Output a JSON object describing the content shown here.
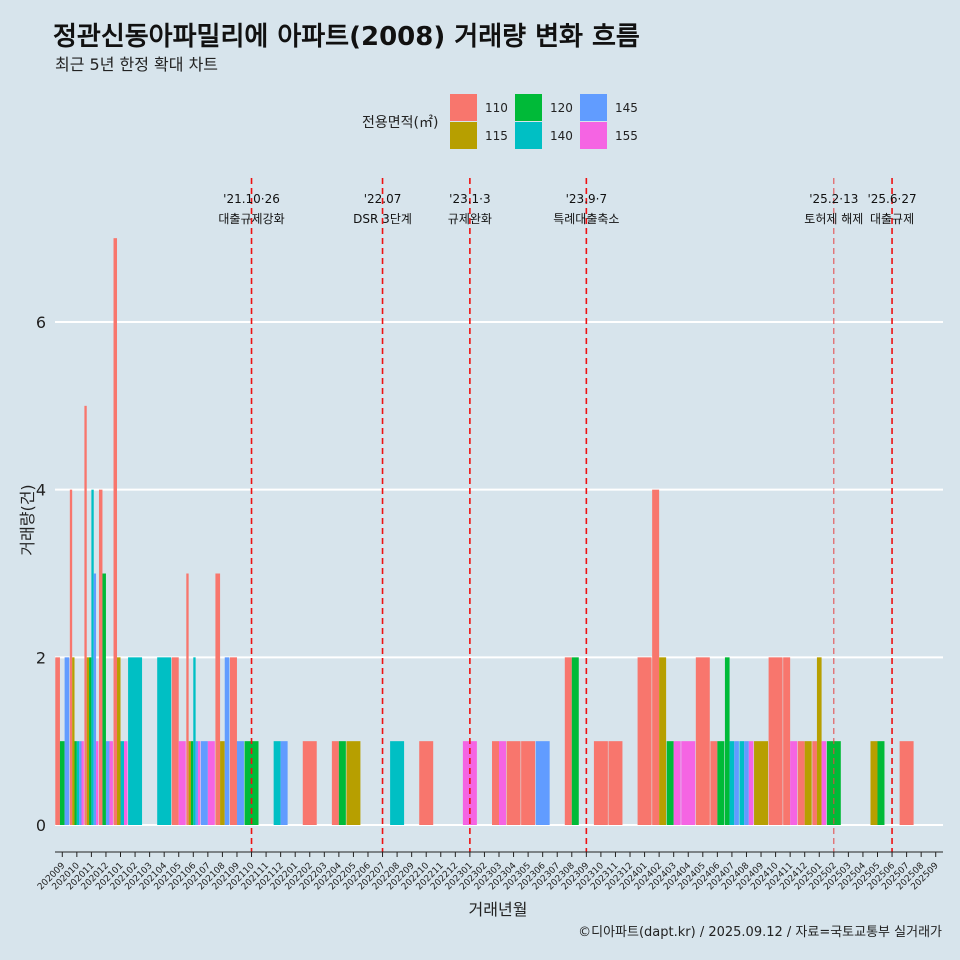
{
  "chart_data": {
    "type": "bar",
    "title": "정관신동아파밀리에 아파트(2008) 거래량 변화 흐름",
    "subtitle": "최근 5년 한정 확대 차트",
    "xlabel": "거래년월",
    "ylabel": "거래량(건)",
    "ylim": [
      -0.3,
      7.5
    ],
    "yticks": [
      0,
      2,
      4,
      6
    ],
    "legend_title": "전용면적(㎡)",
    "legend_position": "top",
    "grid": true,
    "caption": "©디아파트(dapt.kr) / 2025.09.12 / 자료=국토교통부 실거래가",
    "categories": [
      "202009",
      "202010",
      "202011",
      "202012",
      "202101",
      "202102",
      "202103",
      "202104",
      "202105",
      "202106",
      "202107",
      "202108",
      "202109",
      "202110",
      "202111",
      "202112",
      "202201",
      "202202",
      "202203",
      "202204",
      "202205",
      "202206",
      "202207",
      "202208",
      "202209",
      "202210",
      "202211",
      "202212",
      "202301",
      "202302",
      "202303",
      "202304",
      "202305",
      "202306",
      "202307",
      "202308",
      "202309",
      "202310",
      "202311",
      "202312",
      "202401",
      "202402",
      "202403",
      "202404",
      "202405",
      "202406",
      "202407",
      "202408",
      "202409",
      "202410",
      "202411",
      "202412",
      "202501",
      "202502",
      "202503",
      "202504",
      "202505",
      "202506",
      "202507",
      "202508",
      "202509"
    ],
    "series": [
      {
        "name": "110",
        "color": "#f8766d",
        "values": [
          2,
          4,
          5,
          4,
          7,
          0,
          0,
          0,
          2,
          3,
          0,
          3,
          2,
          0,
          0,
          0,
          0,
          1,
          0,
          1,
          0,
          0,
          0,
          0,
          0,
          1,
          0,
          0,
          0,
          0,
          1,
          1,
          1,
          0,
          0,
          2,
          0,
          1,
          1,
          0,
          2,
          4,
          0,
          0,
          2,
          1,
          0,
          0,
          0,
          2,
          2,
          1,
          1,
          0,
          0,
          0,
          0,
          0,
          1,
          0,
          0
        ]
      },
      {
        "name": "115",
        "color": "#b79f00",
        "values": [
          0,
          2,
          2,
          0,
          2,
          0,
          0,
          0,
          0,
          1,
          0,
          1,
          0,
          0,
          0,
          0,
          0,
          0,
          0,
          0,
          1,
          0,
          0,
          0,
          0,
          0,
          0,
          0,
          0,
          0,
          0,
          0,
          0,
          0,
          0,
          0,
          0,
          0,
          0,
          0,
          0,
          2,
          0,
          0,
          0,
          0,
          0,
          0,
          1,
          0,
          0,
          1,
          2,
          0,
          0,
          0,
          1,
          0,
          0,
          0,
          0
        ]
      },
      {
        "name": "120",
        "color": "#00ba38",
        "values": [
          1,
          1,
          2,
          3,
          0,
          0,
          0,
          0,
          0,
          1,
          0,
          0,
          0,
          1,
          0,
          0,
          0,
          0,
          0,
          1,
          0,
          0,
          0,
          0,
          0,
          0,
          0,
          0,
          0,
          0,
          0,
          0,
          0,
          0,
          0,
          2,
          0,
          0,
          0,
          0,
          0,
          0,
          1,
          0,
          0,
          1,
          2,
          0,
          0,
          0,
          0,
          0,
          0,
          1,
          0,
          0,
          1,
          0,
          0,
          0,
          0
        ]
      },
      {
        "name": "140",
        "color": "#00bfc4",
        "values": [
          0,
          1,
          4,
          0,
          1,
          2,
          0,
          2,
          0,
          2,
          0,
          0,
          0,
          0,
          0,
          1,
          0,
          0,
          0,
          0,
          0,
          0,
          0,
          1,
          0,
          0,
          0,
          0,
          0,
          0,
          0,
          0,
          0,
          0,
          0,
          0,
          0,
          0,
          0,
          0,
          0,
          0,
          0,
          0,
          0,
          0,
          1,
          1,
          0,
          0,
          0,
          0,
          0,
          0,
          0,
          0,
          0,
          0,
          0,
          0,
          0
        ]
      },
      {
        "name": "145",
        "color": "#619cff",
        "values": [
          2,
          1,
          3,
          1,
          0,
          0,
          0,
          0,
          0,
          1,
          1,
          2,
          1,
          0,
          0,
          1,
          0,
          0,
          0,
          0,
          0,
          0,
          0,
          0,
          0,
          0,
          0,
          0,
          0,
          0,
          0,
          0,
          0,
          1,
          0,
          0,
          0,
          0,
          0,
          0,
          0,
          0,
          0,
          0,
          0,
          0,
          1,
          1,
          0,
          0,
          0,
          0,
          0,
          0,
          0,
          0,
          0,
          0,
          0,
          0,
          0
        ]
      },
      {
        "name": "155",
        "color": "#f564e3",
        "values": [
          0,
          1,
          1,
          1,
          1,
          0,
          0,
          0,
          1,
          1,
          1,
          0,
          0,
          0,
          0,
          0,
          0,
          0,
          0,
          0,
          0,
          0,
          0,
          0,
          0,
          0,
          0,
          0,
          1,
          0,
          1,
          0,
          0,
          0,
          0,
          0,
          0,
          0,
          0,
          0,
          0,
          0,
          1,
          1,
          0,
          0,
          0,
          1,
          0,
          0,
          1,
          0,
          1,
          0,
          0,
          0,
          0,
          0,
          0,
          0,
          0
        ]
      }
    ],
    "events": [
      {
        "label1": "'21.10·26",
        "label2": "대출규제강화",
        "category": "202110",
        "major": true
      },
      {
        "label1": "'22.07",
        "label2": "DSR 3단계",
        "category": "202207",
        "major": true
      },
      {
        "label1": "'23.1·3",
        "label2": "규제완화",
        "category": "202301",
        "major": true
      },
      {
        "label1": "'23.9·7",
        "label2": "특례대출축소",
        "category": "202309",
        "major": true
      },
      {
        "label1": "'25.2·13",
        "label2": "토허제 해제",
        "category": "202502",
        "major": false
      },
      {
        "label1": "'25.6·27",
        "label2": "대출규제",
        "category": "202506",
        "major": true
      }
    ]
  }
}
